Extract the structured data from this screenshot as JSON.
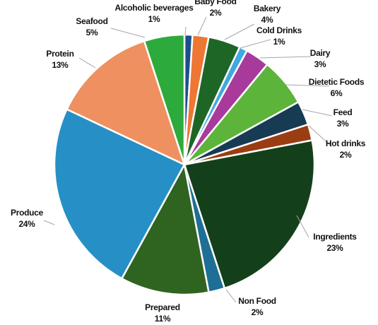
{
  "chart_data": {
    "type": "pie",
    "title": "",
    "start_angle_deg": 0,
    "direction": "clockwise",
    "slices": [
      {
        "name": "Alcoholic beverages",
        "value": 1,
        "label": "1%",
        "color": "#1a4f8b"
      },
      {
        "name": "Baby Food",
        "value": 2,
        "label": "2%",
        "color": "#ee7733"
      },
      {
        "name": "Bakery",
        "value": 4,
        "label": "4%",
        "color": "#1e6626"
      },
      {
        "name": "Cold Drinks",
        "value": 1,
        "label": "1%",
        "color": "#3fa9e0"
      },
      {
        "name": "Dairy",
        "value": 3,
        "label": "3%",
        "color": "#a83a9c"
      },
      {
        "name": "Dietetic Foods",
        "value": 6,
        "label": "6%",
        "color": "#5cb43a"
      },
      {
        "name": "Feed",
        "value": 3,
        "label": "3%",
        "color": "#173b53"
      },
      {
        "name": "Hot drinks",
        "value": 2,
        "label": "2%",
        "color": "#9b3d12"
      },
      {
        "name": "Ingredients",
        "value": 23,
        "label": "23%",
        "color": "#13401a"
      },
      {
        "name": "Non Food",
        "value": 2,
        "label": "2%",
        "color": "#1f6e96"
      },
      {
        "name": "Prepared",
        "value": 11,
        "label": "11%",
        "color": "#2f6420"
      },
      {
        "name": "Produce",
        "value": 24,
        "label": "24%",
        "color": "#2690c6"
      },
      {
        "name": "Protein",
        "value": 13,
        "label": "13%",
        "color": "#ee9060"
      },
      {
        "name": "Seafood",
        "value": 5,
        "label": "5%",
        "color": "#2daa3c"
      }
    ]
  }
}
